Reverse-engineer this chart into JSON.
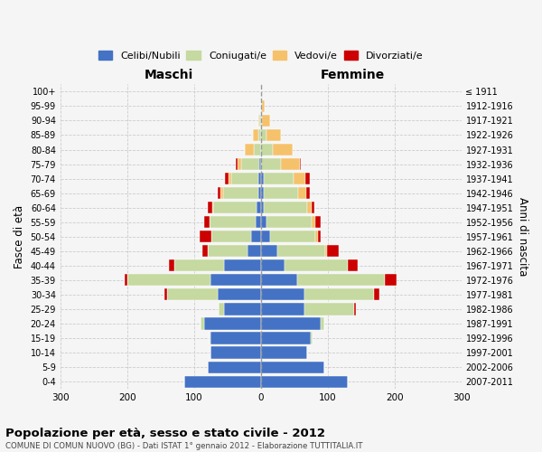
{
  "age_groups": [
    "0-4",
    "5-9",
    "10-14",
    "15-19",
    "20-24",
    "25-29",
    "30-34",
    "35-39",
    "40-44",
    "45-49",
    "50-54",
    "55-59",
    "60-64",
    "65-69",
    "70-74",
    "75-79",
    "80-84",
    "85-89",
    "90-94",
    "95-99",
    "100+"
  ],
  "birth_years": [
    "2007-2011",
    "2002-2006",
    "1997-2001",
    "1992-1996",
    "1987-1991",
    "1982-1986",
    "1977-1981",
    "1972-1976",
    "1967-1971",
    "1962-1966",
    "1957-1961",
    "1952-1956",
    "1947-1951",
    "1942-1946",
    "1937-1941",
    "1932-1936",
    "1927-1931",
    "1922-1926",
    "1917-1921",
    "1912-1916",
    "≤ 1911"
  ],
  "colors": {
    "celibi": "#4472c4",
    "coniugati": "#c5d9a0",
    "vedovi": "#f5c26b",
    "divorziati": "#cc0000"
  },
  "maschi": {
    "celibi": [
      115,
      80,
      75,
      75,
      85,
      55,
      65,
      75,
      55,
      20,
      14,
      8,
      6,
      4,
      4,
      2,
      0,
      0,
      0,
      0,
      0
    ],
    "coniugati": [
      0,
      0,
      0,
      2,
      5,
      8,
      75,
      125,
      75,
      60,
      60,
      68,
      65,
      52,
      40,
      28,
      10,
      4,
      2,
      0,
      0
    ],
    "vedovi": [
      0,
      0,
      0,
      0,
      0,
      0,
      0,
      0,
      0,
      0,
      0,
      1,
      2,
      4,
      4,
      5,
      14,
      8,
      2,
      0,
      0
    ],
    "divorziati": [
      0,
      0,
      0,
      0,
      0,
      0,
      4,
      4,
      8,
      8,
      18,
      8,
      6,
      4,
      5,
      2,
      0,
      0,
      0,
      0,
      0
    ]
  },
  "femmine": {
    "celibi": [
      130,
      95,
      70,
      75,
      90,
      65,
      65,
      55,
      35,
      25,
      14,
      8,
      5,
      4,
      4,
      0,
      0,
      0,
      0,
      0,
      0
    ],
    "coniugati": [
      0,
      0,
      0,
      2,
      5,
      75,
      105,
      130,
      95,
      72,
      68,
      68,
      65,
      52,
      45,
      30,
      18,
      8,
      2,
      2,
      0
    ],
    "vedovi": [
      0,
      0,
      0,
      0,
      0,
      0,
      0,
      0,
      0,
      2,
      4,
      6,
      6,
      12,
      18,
      28,
      30,
      22,
      12,
      4,
      0
    ],
    "divorziati": [
      0,
      0,
      0,
      0,
      0,
      2,
      8,
      18,
      15,
      18,
      4,
      8,
      4,
      5,
      6,
      2,
      0,
      0,
      0,
      0,
      0
    ]
  },
  "xlim": 300,
  "title": "Popolazione per età, sesso e stato civile - 2012",
  "subtitle": "COMUNE DI COMUN NUOVO (BG) - Dati ISTAT 1° gennaio 2012 - Elaborazione TUTTITALIA.IT",
  "ylabel_left": "Fasce di età",
  "ylabel_right": "Anni di nascita",
  "xlabel_left": "Maschi",
  "xlabel_right": "Femmine",
  "bg_color": "#f5f5f5",
  "grid_color": "#cccccc"
}
